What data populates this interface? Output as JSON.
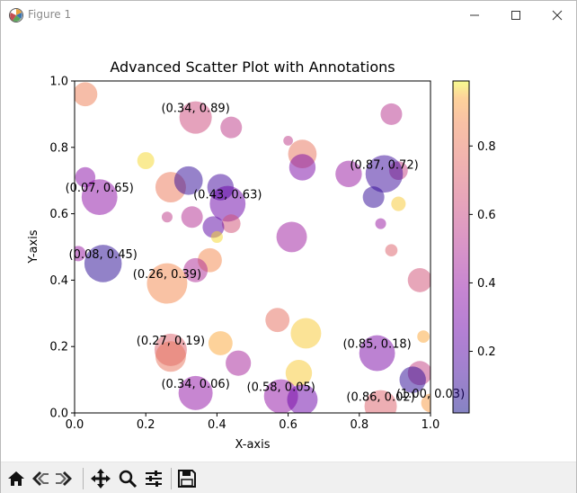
{
  "window": {
    "title": "Figure 1",
    "icons": [
      "matplotlib-icon",
      "minimize-icon",
      "maximize-icon",
      "close-icon"
    ]
  },
  "toolbar": {
    "buttons": [
      "home-icon",
      "back-icon",
      "forward-icon",
      "pan-icon",
      "zoom-icon",
      "configure-subplots-icon",
      "save-icon"
    ]
  },
  "chart_data": {
    "type": "scatter",
    "title": "Advanced Scatter Plot with Annotations",
    "xlabel": "X-axis",
    "ylabel": "Y-axis",
    "xlim": [
      0,
      1
    ],
    "ylim": [
      0,
      1
    ],
    "x_ticks": [
      "0.0",
      "0.2",
      "0.4",
      "0.6",
      "0.8",
      "1.0"
    ],
    "y_ticks": [
      "0.0",
      "0.2",
      "0.4",
      "0.6",
      "0.8",
      "1.0"
    ],
    "grid": false,
    "colormap": "plasma",
    "alpha": 0.5,
    "colorbar": {
      "range": [
        0.02,
        0.99
      ],
      "ticks": [
        "0.2",
        "0.4",
        "0.6",
        "0.8"
      ]
    },
    "points": [
      {
        "x": 0.03,
        "y": 0.96,
        "c": 0.84,
        "s": 500
      },
      {
        "x": 0.34,
        "y": 0.89,
        "c": 0.62,
        "s": 900,
        "label": "(0.34, 0.89)"
      },
      {
        "x": 0.44,
        "y": 0.86,
        "c": 0.55,
        "s": 400
      },
      {
        "x": 0.89,
        "y": 0.9,
        "c": 0.52,
        "s": 400
      },
      {
        "x": 0.6,
        "y": 0.82,
        "c": 0.55,
        "s": 80
      },
      {
        "x": 0.64,
        "y": 0.78,
        "c": 0.8,
        "s": 700
      },
      {
        "x": 0.2,
        "y": 0.76,
        "c": 0.98,
        "s": 250
      },
      {
        "x": 0.64,
        "y": 0.74,
        "c": 0.3,
        "s": 600
      },
      {
        "x": 0.77,
        "y": 0.72,
        "c": 0.4,
        "s": 600
      },
      {
        "x": 0.91,
        "y": 0.73,
        "c": 0.58,
        "s": 300
      },
      {
        "x": 0.87,
        "y": 0.72,
        "c": 0.1,
        "s": 1200,
        "label": "(0.87, 0.72)"
      },
      {
        "x": 0.03,
        "y": 0.71,
        "c": 0.35,
        "s": 350
      },
      {
        "x": 0.07,
        "y": 0.65,
        "c": 0.36,
        "s": 1100,
        "label": "(0.07, 0.65)"
      },
      {
        "x": 0.27,
        "y": 0.68,
        "c": 0.82,
        "s": 800
      },
      {
        "x": 0.32,
        "y": 0.7,
        "c": 0.08,
        "s": 700
      },
      {
        "x": 0.41,
        "y": 0.68,
        "c": 0.12,
        "s": 600
      },
      {
        "x": 0.43,
        "y": 0.63,
        "c": 0.25,
        "s": 1100,
        "label": "(0.43, 0.63)"
      },
      {
        "x": 0.84,
        "y": 0.65,
        "c": 0.08,
        "s": 400
      },
      {
        "x": 0.91,
        "y": 0.63,
        "c": 0.97,
        "s": 180
      },
      {
        "x": 0.26,
        "y": 0.59,
        "c": 0.55,
        "s": 100
      },
      {
        "x": 0.33,
        "y": 0.59,
        "c": 0.5,
        "s": 400
      },
      {
        "x": 0.44,
        "y": 0.57,
        "c": 0.65,
        "s": 300
      },
      {
        "x": 0.39,
        "y": 0.56,
        "c": 0.2,
        "s": 400
      },
      {
        "x": 0.86,
        "y": 0.57,
        "c": 0.4,
        "s": 100
      },
      {
        "x": 0.61,
        "y": 0.53,
        "c": 0.42,
        "s": 800
      },
      {
        "x": 0.4,
        "y": 0.53,
        "c": 0.98,
        "s": 120
      },
      {
        "x": 0.01,
        "y": 0.48,
        "c": 0.4,
        "s": 200
      },
      {
        "x": 0.08,
        "y": 0.45,
        "c": 0.06,
        "s": 1200,
        "label": "(0.08, 0.45)"
      },
      {
        "x": 0.38,
        "y": 0.46,
        "c": 0.88,
        "s": 500
      },
      {
        "x": 0.89,
        "y": 0.49,
        "c": 0.72,
        "s": 130
      },
      {
        "x": 0.34,
        "y": 0.43,
        "c": 0.48,
        "s": 500
      },
      {
        "x": 0.26,
        "y": 0.39,
        "c": 0.88,
        "s": 1400,
        "label": "(0.26, 0.39)"
      },
      {
        "x": 0.97,
        "y": 0.4,
        "c": 0.65,
        "s": 500
      },
      {
        "x": 0.57,
        "y": 0.28,
        "c": 0.78,
        "s": 500
      },
      {
        "x": 0.65,
        "y": 0.24,
        "c": 0.97,
        "s": 800
      },
      {
        "x": 0.98,
        "y": 0.23,
        "c": 0.95,
        "s": 130
      },
      {
        "x": 0.41,
        "y": 0.21,
        "c": 0.95,
        "s": 500
      },
      {
        "x": 0.27,
        "y": 0.19,
        "c": 0.72,
        "s": 900,
        "label": "(0.27, 0.19)"
      },
      {
        "x": 0.85,
        "y": 0.18,
        "c": 0.3,
        "s": 1100,
        "label": "(0.85, 0.18)"
      },
      {
        "x": 0.27,
        "y": 0.17,
        "c": 0.8,
        "s": 800
      },
      {
        "x": 0.46,
        "y": 0.15,
        "c": 0.45,
        "s": 550
      },
      {
        "x": 0.63,
        "y": 0.12,
        "c": 0.97,
        "s": 600
      },
      {
        "x": 0.97,
        "y": 0.12,
        "c": 0.58,
        "s": 500
      },
      {
        "x": 0.95,
        "y": 0.1,
        "c": 0.07,
        "s": 600
      },
      {
        "x": 0.34,
        "y": 0.06,
        "c": 0.38,
        "s": 1000,
        "label": "(0.34, 0.06)"
      },
      {
        "x": 0.58,
        "y": 0.05,
        "c": 0.38,
        "s": 1000,
        "label": "(0.58, 0.05)"
      },
      {
        "x": 0.64,
        "y": 0.04,
        "c": 0.25,
        "s": 800
      },
      {
        "x": 0.86,
        "y": 0.02,
        "c": 0.72,
        "s": 900,
        "label": "(0.86, 0.02)"
      },
      {
        "x": 1.0,
        "y": 0.03,
        "c": 0.92,
        "s": 300,
        "label": "(1.00, 0.03)"
      }
    ]
  }
}
